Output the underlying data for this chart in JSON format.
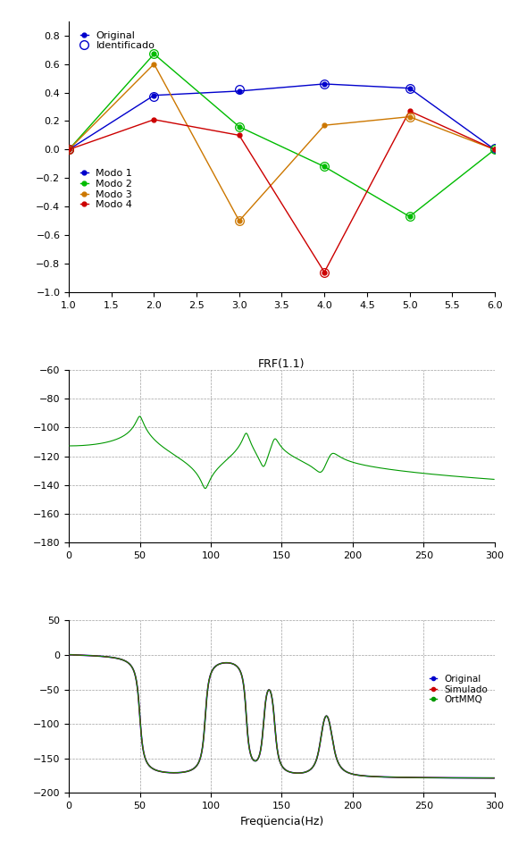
{
  "top": {
    "xlim": [
      1,
      6
    ],
    "ylim": [
      -1,
      0.9
    ],
    "yticks": [
      -1,
      -0.8,
      -0.6,
      -0.4,
      -0.2,
      0,
      0.2,
      0.4,
      0.6,
      0.8
    ],
    "xticks": [
      1,
      1.5,
      2,
      2.5,
      3,
      3.5,
      4,
      4.5,
      5,
      5.5,
      6
    ],
    "modes_original": {
      "modo1": {
        "x": [
          1,
          2,
          3,
          4,
          5,
          6
        ],
        "y": [
          0.0,
          0.38,
          0.41,
          0.46,
          0.43,
          0.0
        ]
      },
      "modo2": {
        "x": [
          1,
          2,
          3,
          4,
          5,
          6
        ],
        "y": [
          0.0,
          0.67,
          0.16,
          -0.12,
          -0.47,
          0.0
        ]
      },
      "modo3": {
        "x": [
          1,
          2,
          3,
          4,
          5,
          6
        ],
        "y": [
          0.0,
          0.6,
          -0.5,
          0.17,
          0.23,
          0.0
        ]
      },
      "modo4": {
        "x": [
          1,
          2,
          3,
          4,
          5,
          6
        ],
        "y": [
          0.0,
          0.21,
          0.1,
          -0.86,
          0.27,
          0.0
        ]
      }
    },
    "modes_identified": {
      "modo1": {
        "x": [
          1,
          2,
          3,
          4,
          5,
          6
        ],
        "y": [
          0.0,
          0.37,
          0.42,
          0.46,
          0.43,
          0.01
        ]
      },
      "modo2": {
        "x": [
          1,
          2,
          3,
          4,
          5,
          6
        ],
        "y": [
          0.0,
          0.67,
          0.16,
          -0.12,
          -0.47,
          0.0
        ]
      },
      "modo3": {
        "x": [
          1,
          3,
          5
        ],
        "y": [
          0.0,
          -0.5,
          0.23
        ]
      },
      "modo4": {
        "x": [
          1,
          4
        ],
        "y": [
          0.0,
          -0.86
        ]
      }
    },
    "colors": {
      "modo1": "#0000cc",
      "modo2": "#00bb00",
      "modo3": "#cc7700",
      "modo4": "#cc0000"
    }
  },
  "middle": {
    "title": "FRF(1.1)",
    "xlim": [
      0,
      300
    ],
    "ylim": [
      -180,
      -60
    ],
    "yticks": [
      -180,
      -160,
      -140,
      -120,
      -100,
      -80,
      -60
    ],
    "xticks": [
      0,
      50,
      100,
      150,
      200,
      250,
      300
    ],
    "color": "#009900"
  },
  "bottom": {
    "xlim": [
      0,
      300
    ],
    "ylim": [
      -200,
      50
    ],
    "yticks": [
      -200,
      -150,
      -100,
      -50,
      0,
      50
    ],
    "xticks": [
      0,
      50,
      100,
      150,
      200,
      250,
      300
    ],
    "xlabel": "Freqüencia(Hz)",
    "colors": {
      "original": "#0000cc",
      "simulado": "#cc0000",
      "ortmmq": "#009900"
    }
  }
}
